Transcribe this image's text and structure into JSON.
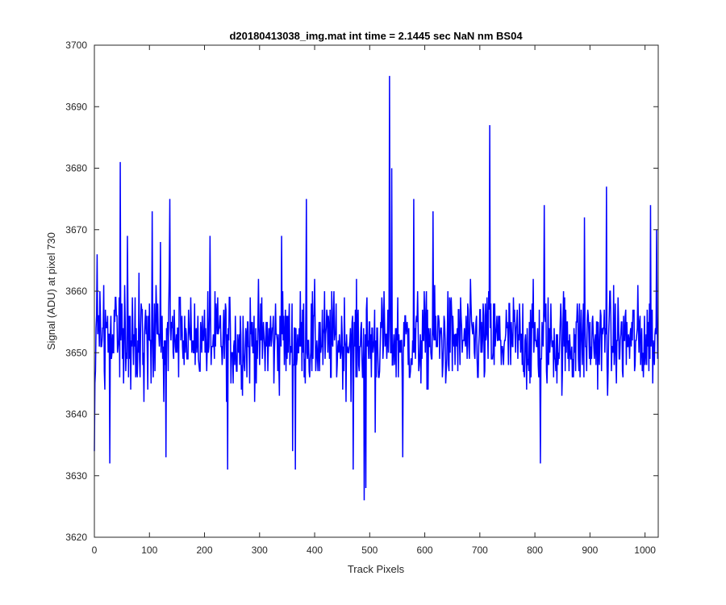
{
  "chart_data": {
    "type": "line",
    "title": "d20180413038_img.mat int time = 2.1445 sec  NaN nm BS04",
    "xlabel": "Track Pixels",
    "ylabel": "Signal (ADU) at pixel 730",
    "xlim": [
      0,
      1024
    ],
    "ylim": [
      3620,
      3700
    ],
    "xticks": [
      0,
      100,
      200,
      300,
      400,
      500,
      600,
      700,
      800,
      900,
      1000
    ],
    "yticks": [
      3620,
      3630,
      3640,
      3650,
      3660,
      3670,
      3680,
      3690,
      3700
    ],
    "series_color": "#0000ff",
    "grid": false,
    "legend": "none",
    "noise": {
      "n_points": 1024,
      "mean": 3652,
      "typical_range": [
        3640,
        3668
      ]
    },
    "peaks": [
      {
        "x": 0,
        "y": 3634
      },
      {
        "x": 5,
        "y": 3666
      },
      {
        "x": 28,
        "y": 3632
      },
      {
        "x": 47,
        "y": 3681
      },
      {
        "x": 60,
        "y": 3669
      },
      {
        "x": 105,
        "y": 3673
      },
      {
        "x": 120,
        "y": 3668
      },
      {
        "x": 130,
        "y": 3633
      },
      {
        "x": 137,
        "y": 3675
      },
      {
        "x": 210,
        "y": 3669
      },
      {
        "x": 242,
        "y": 3631
      },
      {
        "x": 340,
        "y": 3669
      },
      {
        "x": 360,
        "y": 3634
      },
      {
        "x": 365,
        "y": 3631
      },
      {
        "x": 385,
        "y": 3675
      },
      {
        "x": 470,
        "y": 3631
      },
      {
        "x": 490,
        "y": 3626
      },
      {
        "x": 493,
        "y": 3628
      },
      {
        "x": 510,
        "y": 3637
      },
      {
        "x": 536,
        "y": 3695
      },
      {
        "x": 540,
        "y": 3680
      },
      {
        "x": 560,
        "y": 3633
      },
      {
        "x": 580,
        "y": 3675
      },
      {
        "x": 615,
        "y": 3673
      },
      {
        "x": 718,
        "y": 3687
      },
      {
        "x": 810,
        "y": 3632
      },
      {
        "x": 817,
        "y": 3674
      },
      {
        "x": 890,
        "y": 3672
      },
      {
        "x": 930,
        "y": 3677
      },
      {
        "x": 1010,
        "y": 3674
      },
      {
        "x": 1021,
        "y": 3670
      }
    ]
  }
}
